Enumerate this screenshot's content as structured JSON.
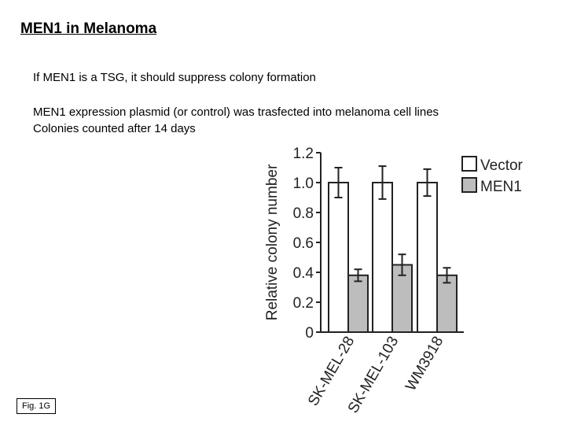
{
  "slide": {
    "title": "MEN1 in Melanoma",
    "lines": [
      "If MEN1 is a TSG, it should suppress colony formation",
      "MEN1 expression plasmid (or control) was trasfected into melanoma cell lines",
      "Colonies counted after 14 days"
    ],
    "figure_label": "Fig. 1G"
  },
  "chart_data": {
    "type": "bar",
    "categories": [
      "SK-MEL-28",
      "SK-MEL-103",
      "WM3918"
    ],
    "series": [
      {
        "name": "Vector",
        "values": [
          1.0,
          1.0,
          1.0
        ],
        "errors": [
          0.1,
          0.11,
          0.09
        ],
        "color": "#ffffff"
      },
      {
        "name": "MEN1",
        "values": [
          0.38,
          0.45,
          0.38
        ],
        "errors": [
          0.04,
          0.07,
          0.05
        ],
        "color": "#bdbdbd"
      }
    ],
    "xlabel": "",
    "ylabel": "Relative colony number",
    "ylim": [
      0,
      1.2
    ],
    "yticks": [
      "0",
      "0.2",
      "0.4",
      "0.6",
      "0.8",
      "1.0",
      "1.2"
    ],
    "legend": "top-right",
    "grid": false
  }
}
